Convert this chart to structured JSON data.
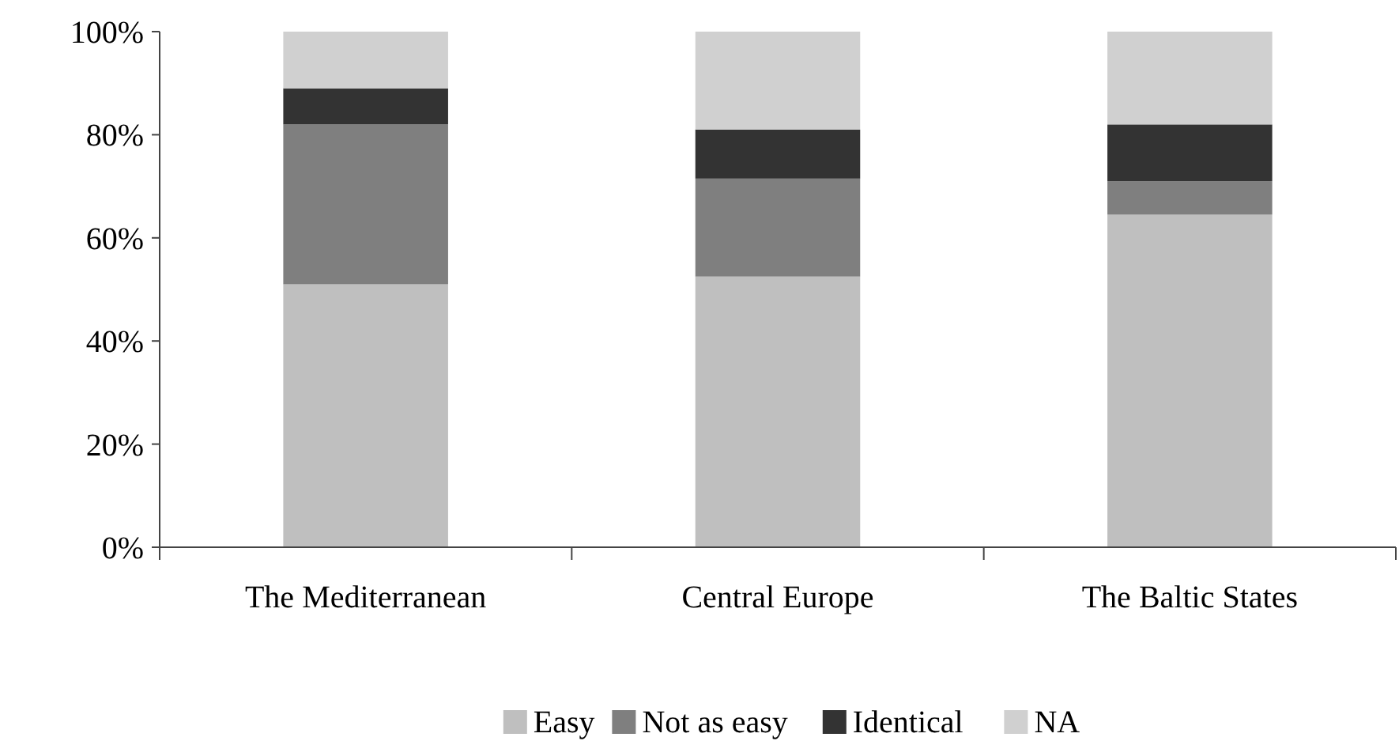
{
  "chart_data": {
    "type": "bar",
    "stacked": true,
    "categories": [
      "The Mediterranean",
      "Central Europe",
      "The Baltic States"
    ],
    "series": [
      {
        "name": "Easy",
        "color": "#bfbfbf",
        "values": [
          51,
          52.5,
          64.5
        ]
      },
      {
        "name": "Not as easy",
        "color": "#7f7f7f",
        "values": [
          31,
          19,
          6.5
        ]
      },
      {
        "name": "Identical",
        "color": "#333333",
        "values": [
          7,
          9.5,
          11
        ]
      },
      {
        "name": "NA",
        "color": "#d0d0d0",
        "values": [
          11,
          19,
          18
        ]
      }
    ],
    "ylim": [
      0,
      100
    ],
    "yticks": [
      {
        "value": 0,
        "label": "0%"
      },
      {
        "value": 20,
        "label": "20%"
      },
      {
        "value": 40,
        "label": "40%"
      },
      {
        "value": 60,
        "label": "60%"
      },
      {
        "value": 80,
        "label": "80%"
      },
      {
        "value": 100,
        "label": "100%"
      }
    ],
    "grid": false,
    "legend": "bottom"
  }
}
